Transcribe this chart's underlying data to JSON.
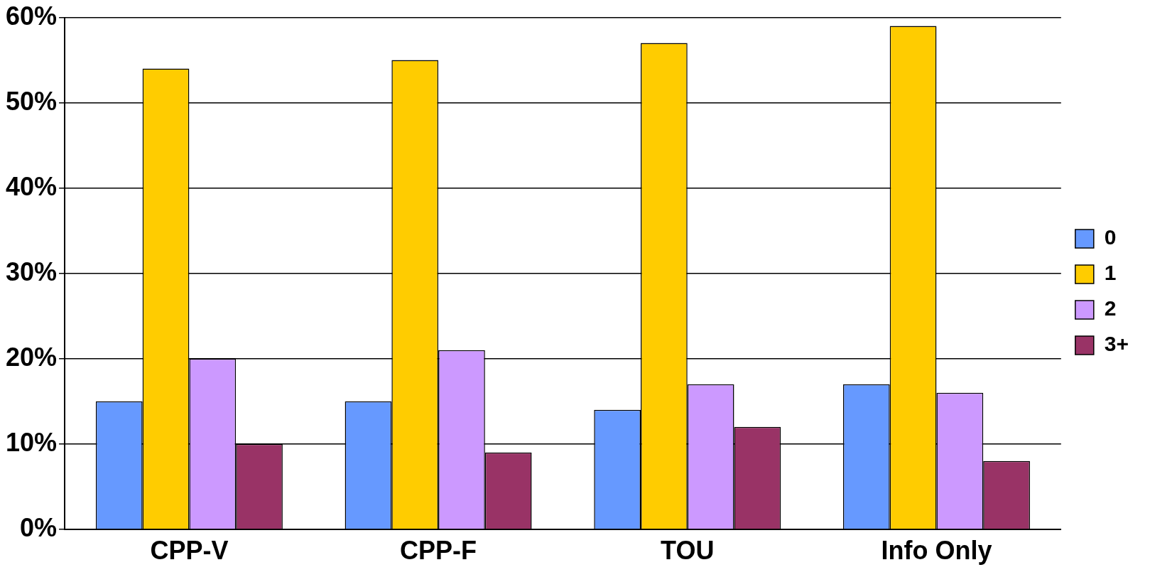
{
  "chart_data": {
    "type": "bar",
    "categories": [
      "CPP-V",
      "CPP-F",
      "TOU",
      "Info Only"
    ],
    "series": [
      {
        "name": "0",
        "color": "#6699ff",
        "values": [
          15,
          15,
          14,
          17
        ]
      },
      {
        "name": "1",
        "color": "#ffcc00",
        "values": [
          54,
          55,
          57,
          59
        ]
      },
      {
        "name": "2",
        "color": "#cc99ff",
        "values": [
          20,
          21,
          17,
          16
        ]
      },
      {
        "name": "3+",
        "color": "#993366",
        "values": [
          10,
          9,
          12,
          8
        ]
      }
    ],
    "ylim": [
      0,
      60
    ],
    "yticks": [
      {
        "value": 0,
        "label": "0%"
      },
      {
        "value": 10,
        "label": "10%"
      },
      {
        "value": 20,
        "label": "20%"
      },
      {
        "value": 30,
        "label": "30%"
      },
      {
        "value": 40,
        "label": "40%"
      },
      {
        "value": 50,
        "label": "50%"
      },
      {
        "value": 60,
        "label": "60%"
      }
    ],
    "grid": "y",
    "legend": "right"
  }
}
